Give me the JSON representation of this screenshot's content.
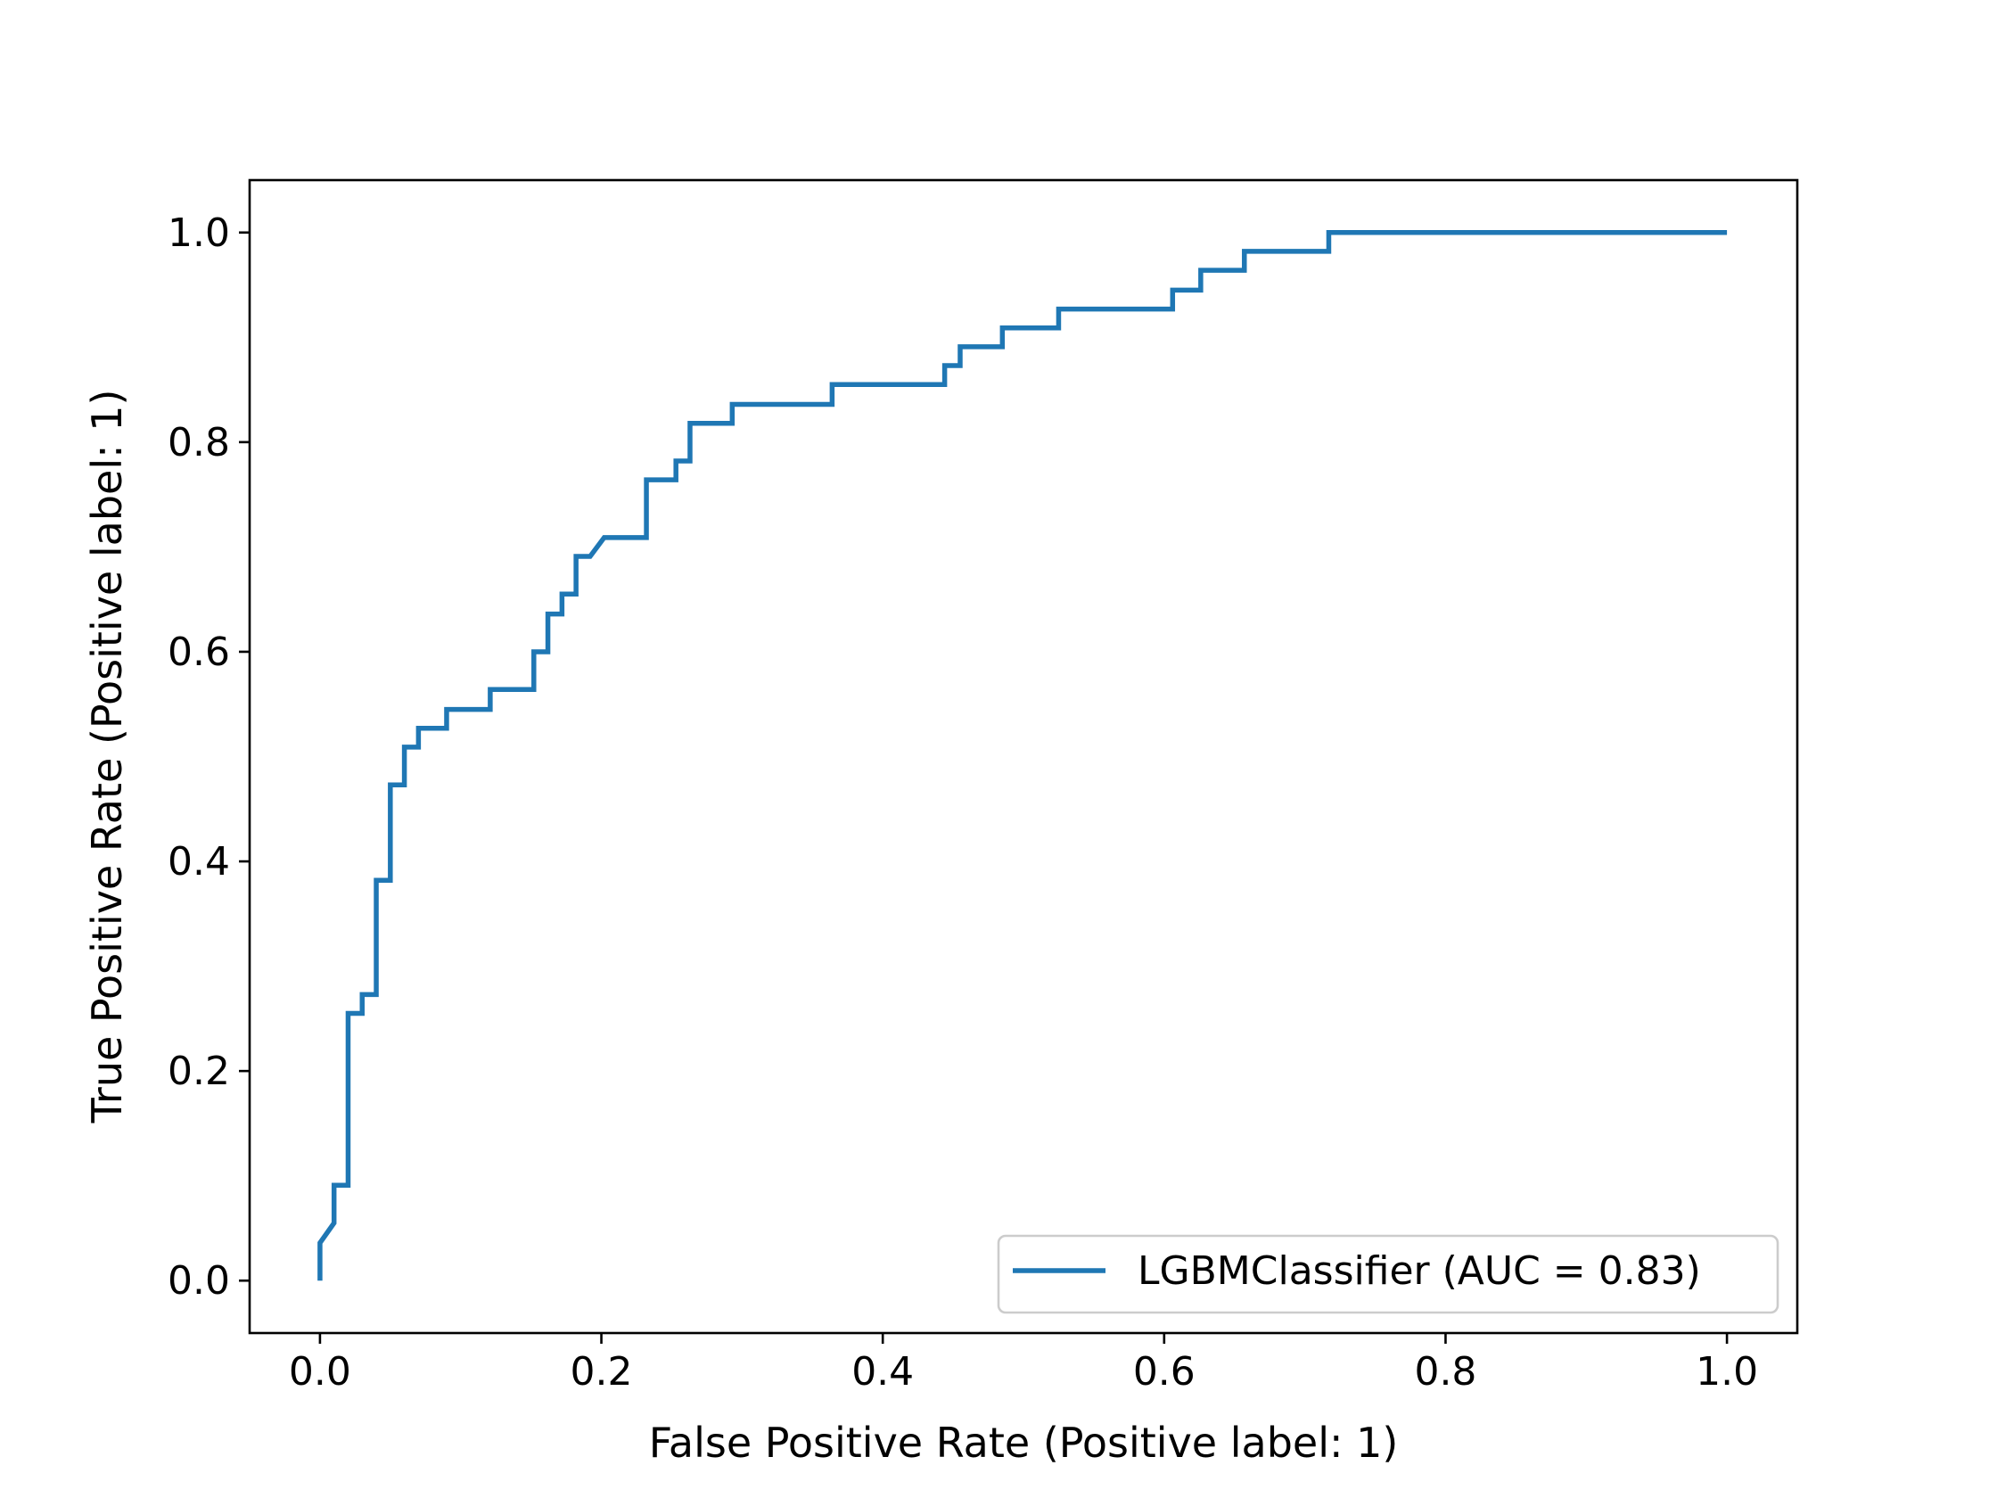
{
  "chart_data": {
    "type": "line",
    "title": "",
    "xlabel": "False Positive Rate (Positive label: 1)",
    "ylabel": "True Positive Rate (Positive label: 1)",
    "xlim": [
      -0.05,
      1.05
    ],
    "ylim": [
      -0.05,
      1.05
    ],
    "xticks": [
      0.0,
      0.2,
      0.4,
      0.6,
      0.8,
      1.0
    ],
    "xtick_labels": [
      "0.0",
      "0.2",
      "0.4",
      "0.6",
      "0.8",
      "1.0"
    ],
    "yticks": [
      0.0,
      0.2,
      0.4,
      0.6,
      0.8,
      1.0
    ],
    "ytick_labels": [
      "0.0",
      "0.2",
      "0.4",
      "0.6",
      "0.8",
      "1.0"
    ],
    "grid": false,
    "legend_position": "lower-right",
    "series": [
      {
        "name": "LGBMClassifier (AUC = 0.83)",
        "color": "#1f77b4",
        "points": [
          [
            0.0,
            0.0
          ],
          [
            0.0,
            0.036
          ],
          [
            0.01,
            0.055
          ],
          [
            0.01,
            0.091
          ],
          [
            0.02,
            0.091
          ],
          [
            0.02,
            0.255
          ],
          [
            0.03,
            0.255
          ],
          [
            0.03,
            0.273
          ],
          [
            0.04,
            0.273
          ],
          [
            0.04,
            0.382
          ],
          [
            0.05,
            0.382
          ],
          [
            0.05,
            0.473
          ],
          [
            0.06,
            0.473
          ],
          [
            0.06,
            0.509
          ],
          [
            0.07,
            0.509
          ],
          [
            0.07,
            0.527
          ],
          [
            0.09,
            0.527
          ],
          [
            0.09,
            0.545
          ],
          [
            0.121,
            0.545
          ],
          [
            0.121,
            0.564
          ],
          [
            0.152,
            0.564
          ],
          [
            0.152,
            0.6
          ],
          [
            0.162,
            0.6
          ],
          [
            0.162,
            0.636
          ],
          [
            0.172,
            0.636
          ],
          [
            0.172,
            0.655
          ],
          [
            0.182,
            0.655
          ],
          [
            0.182,
            0.691
          ],
          [
            0.192,
            0.691
          ],
          [
            0.202,
            0.709
          ],
          [
            0.232,
            0.709
          ],
          [
            0.232,
            0.764
          ],
          [
            0.253,
            0.764
          ],
          [
            0.253,
            0.782
          ],
          [
            0.263,
            0.782
          ],
          [
            0.263,
            0.818
          ],
          [
            0.293,
            0.818
          ],
          [
            0.293,
            0.836
          ],
          [
            0.364,
            0.836
          ],
          [
            0.364,
            0.855
          ],
          [
            0.444,
            0.855
          ],
          [
            0.444,
            0.873
          ],
          [
            0.455,
            0.873
          ],
          [
            0.455,
            0.891
          ],
          [
            0.485,
            0.891
          ],
          [
            0.485,
            0.909
          ],
          [
            0.525,
            0.909
          ],
          [
            0.525,
            0.927
          ],
          [
            0.606,
            0.927
          ],
          [
            0.606,
            0.945
          ],
          [
            0.626,
            0.945
          ],
          [
            0.626,
            0.964
          ],
          [
            0.657,
            0.964
          ],
          [
            0.657,
            0.982
          ],
          [
            0.717,
            0.982
          ],
          [
            0.717,
            1.0
          ],
          [
            1.0,
            1.0
          ]
        ]
      }
    ]
  }
}
